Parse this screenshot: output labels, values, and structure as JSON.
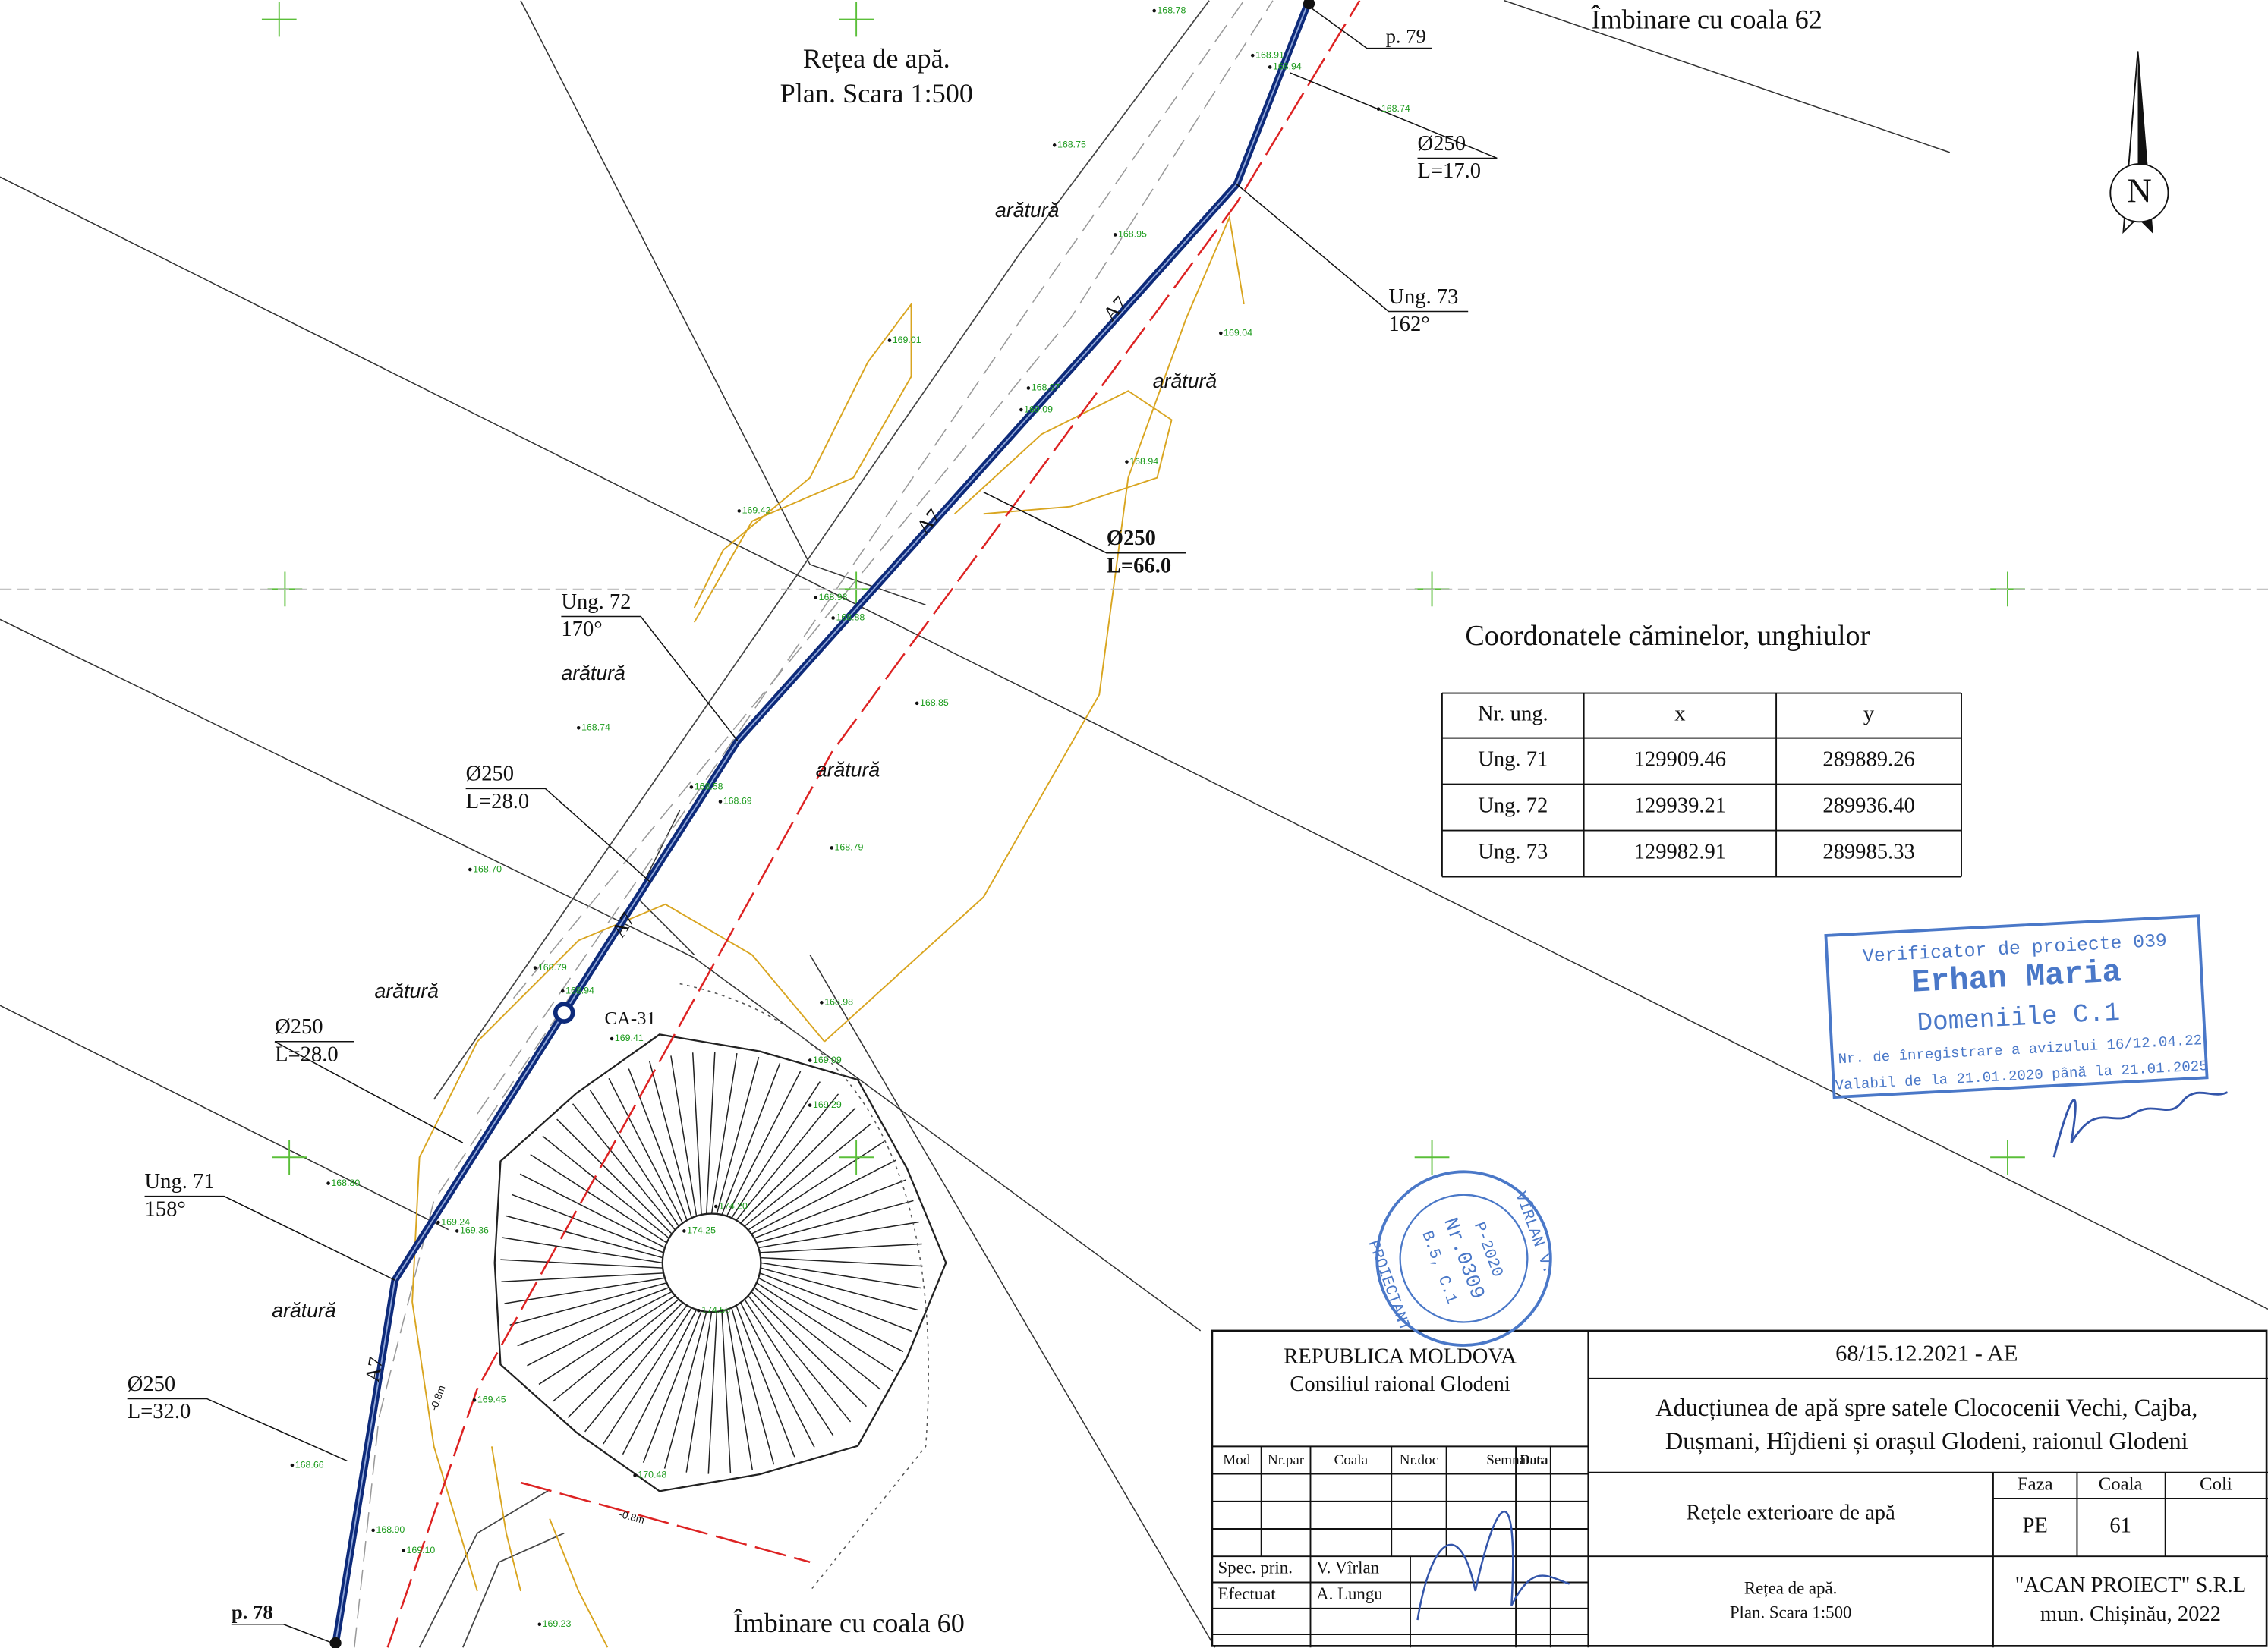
{
  "drawing": {
    "title_line1": "Rețea de apă.",
    "title_line2": "Plan. Scara 1:500",
    "join_top": "Îmbinare cu coala 62",
    "join_bottom": "Îmbinare cu coala 60",
    "north": "N",
    "points": [
      "p. 79",
      "p. 78"
    ],
    "chamber": "CA-31",
    "depth_marks": [
      "-0.8m",
      "-0.8m"
    ],
    "pipe_code": "A7",
    "land_label": "arătură",
    "pipes": [
      {
        "diameter": "Ø250",
        "length": "L=17.0"
      },
      {
        "diameter": "Ø250",
        "length": "L=66.0"
      },
      {
        "diameter": "Ø250",
        "length": "L=28.0"
      },
      {
        "diameter": "Ø250",
        "length": "L=28.0"
      },
      {
        "diameter": "Ø250",
        "length": "L=32.0"
      }
    ],
    "angles": [
      {
        "name": "Ung. 73",
        "angle": "162°"
      },
      {
        "name": "Ung. 72",
        "angle": "170°"
      },
      {
        "name": "Ung. 71",
        "angle": "158°"
      }
    ],
    "elevations": [
      "168.78",
      "168.91",
      "168.94",
      "168.74",
      "168.75",
      "168.95",
      "169.04",
      "169.01",
      "168.97",
      "169.09",
      "168.94",
      "169.42",
      "168.98",
      "168.88",
      "168.85",
      "168.74",
      "168.58",
      "168.69",
      "168.79",
      "168.70",
      "168.79",
      "168.94",
      "168.98",
      "169.41",
      "169.09",
      "169.29",
      "168.80",
      "169.24",
      "169.36",
      "174.20",
      "174.25",
      "174.58",
      "169.45",
      "168.66",
      "170.48",
      "168.90",
      "169.10",
      "169.23"
    ]
  },
  "table": {
    "title": "Coordonatele căminelor, unghiulor",
    "header": [
      "Nr. ung.",
      "x",
      "y"
    ],
    "rows": [
      [
        "Ung. 71",
        "129909.46",
        "289889.26"
      ],
      [
        "Ung. 72",
        "129939.21",
        "289936.40"
      ],
      [
        "Ung. 73",
        "129982.91",
        "289985.33"
      ]
    ]
  },
  "stamps": {
    "verifier": [
      "Verificator de proiecte 039",
      "Erhan Maria",
      "Domeniile C.1",
      "Nr. de înregistrare a avizului 16/12.04.22",
      "Valabil de la 21.01.2020 până la 21.01.2025"
    ],
    "designer": [
      "VÎRLAN V.",
      "PROIECTANT",
      "P-2020",
      "Nr.0309",
      "B.5, C.1"
    ]
  },
  "title_block": {
    "country": "REPUBLICA MOLDOVA",
    "council": "Consiliul raional Glodeni",
    "columns": [
      "Mod",
      "Nr.par",
      "Coala",
      "Nr.doc",
      "Semnătura",
      "Data"
    ],
    "roles": [
      {
        "role": "Spec. prin.",
        "name": "V. Vîrlan"
      },
      {
        "role": "Efectuat",
        "name": "A. Lungu"
      }
    ],
    "code": "68/15.12.2021 - AE",
    "project": [
      "Aducțiunea de apă spre satele Clococenii Vechi, Cajba,",
      "Dușmani, Hîjdieni și orașul Glodeni, raionul Glodeni"
    ],
    "section": "Rețele exterioare de apă",
    "sheet_title": [
      "Rețea de apă.",
      "Plan. Scara 1:500"
    ],
    "stage_headers": [
      "Faza",
      "Coala",
      "Coli"
    ],
    "stage_values": [
      "PE",
      "61"
    ],
    "company": [
      "\"ACAN PROIECT\" S.R.L",
      "mun. Chișinău, 2022"
    ]
  }
}
